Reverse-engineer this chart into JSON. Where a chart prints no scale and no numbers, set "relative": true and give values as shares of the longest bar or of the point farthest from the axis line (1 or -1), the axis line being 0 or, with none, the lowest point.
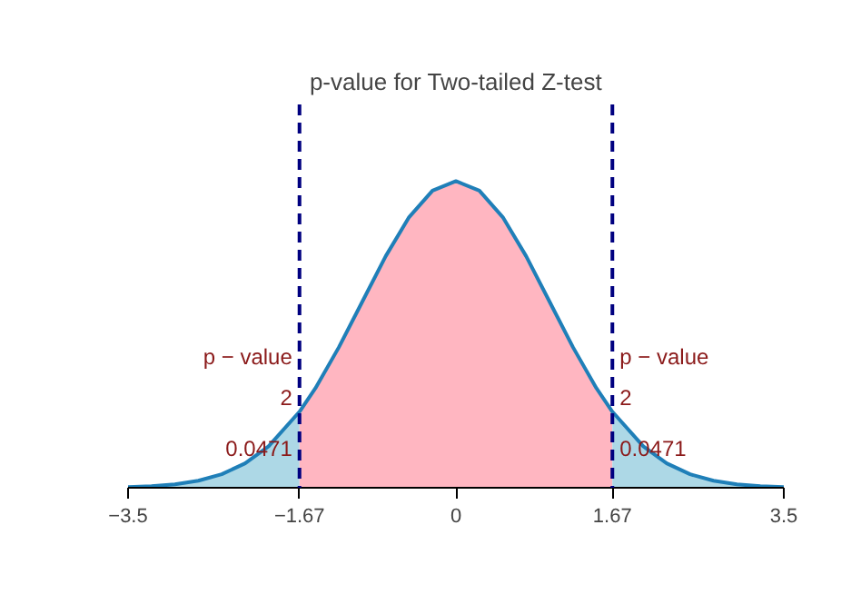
{
  "chart_data": {
    "type": "area",
    "title": "p-value for Two-tailed Z-test",
    "relative": true,
    "xlim": [
      -3.5,
      3.5
    ],
    "xticks": [
      -3.5,
      -1.67,
      0,
      1.67,
      3.5
    ],
    "series": [
      {
        "color": "#add8e6",
        "x": [
          -3.5,
          -3.25,
          -3,
          -2.75,
          -2.5,
          -2.25,
          -2,
          -1.67
        ],
        "values": [
          0.0022,
          0.0051,
          0.0111,
          0.0228,
          0.0439,
          0.0796,
          0.1353,
          0.248
        ]
      },
      {
        "color": "#ffb6c1",
        "x": [
          -1.67,
          -1.5,
          -1.25,
          -1,
          -0.75,
          -0.5,
          -0.25,
          0,
          0.25,
          0.5,
          0.75,
          1,
          1.25,
          1.5,
          1.67
        ],
        "values": [
          0.248,
          0.3247,
          0.458,
          0.6065,
          0.755,
          0.8825,
          0.969,
          1,
          0.969,
          0.8825,
          0.755,
          0.6065,
          0.458,
          0.3247,
          0.248
        ]
      },
      {
        "color": "#add8e6",
        "x": [
          1.67,
          2,
          2.25,
          2.5,
          2.75,
          3,
          3.25,
          3.5
        ],
        "values": [
          0.248,
          0.1353,
          0.0796,
          0.0439,
          0.0228,
          0.0111,
          0.0051,
          0.0022
        ]
      },
      {
        "type": "line",
        "color": "#1f7fb8",
        "x": [
          -3.5,
          -3.25,
          -3,
          -2.75,
          -2.5,
          -2.25,
          -2,
          -1.67,
          -1.5,
          -1.25,
          -1,
          -0.75,
          -0.5,
          -0.25,
          0,
          0.25,
          0.5,
          0.75,
          1,
          1.25,
          1.5,
          1.67,
          2,
          2.25,
          2.5,
          2.75,
          3,
          3.25,
          3.5
        ],
        "values": [
          0.0022,
          0.0051,
          0.0111,
          0.0228,
          0.0439,
          0.0796,
          0.1353,
          0.248,
          0.3247,
          0.458,
          0.6065,
          0.755,
          0.8825,
          0.969,
          1,
          0.969,
          0.8825,
          0.755,
          0.6065,
          0.458,
          0.3247,
          0.248,
          0.1353,
          0.0796,
          0.0439,
          0.0228,
          0.0111,
          0.0051,
          0.0022
        ]
      }
    ],
    "ref_lines": [
      {
        "axis": "x",
        "value": -1.67,
        "color": "#000080",
        "line_style": "dashed"
      },
      {
        "axis": "x",
        "value": 1.67,
        "color": "#000080",
        "line_style": "dashed"
      }
    ],
    "annotations": [
      "p − value",
      "2",
      "0.0471",
      "p − value",
      "2",
      "0.0471"
    ],
    "grid": false
  }
}
